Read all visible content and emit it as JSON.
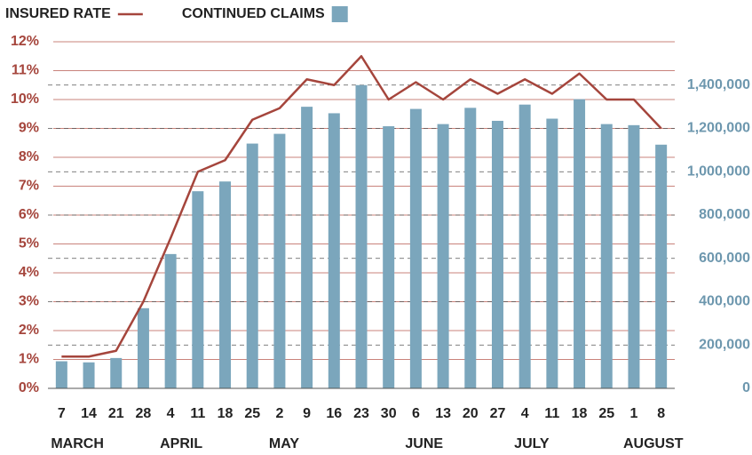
{
  "chart_data": {
    "type": "bar",
    "categories": [
      "7",
      "14",
      "21",
      "28",
      "4",
      "11",
      "18",
      "25",
      "2",
      "9",
      "16",
      "23",
      "30",
      "6",
      "13",
      "20",
      "27",
      "4",
      "11",
      "18",
      "25",
      "1",
      "8"
    ],
    "months": [
      "MARCH",
      null,
      null,
      null,
      "APRIL",
      null,
      null,
      null,
      "MAY",
      null,
      null,
      null,
      null,
      "JUNE",
      null,
      null,
      null,
      "JULY",
      null,
      null,
      null,
      "AUGUST",
      null
    ],
    "series": [
      {
        "name": "INSURED RATE",
        "type": "line",
        "color": "#a5453c",
        "values": [
          1.1,
          1.1,
          1.3,
          3.0,
          5.2,
          7.5,
          7.9,
          9.3,
          9.7,
          10.7,
          10.5,
          11.5,
          10.0,
          10.6,
          10.0,
          10.7,
          10.2,
          10.7,
          10.2,
          10.9,
          10.0,
          10.0,
          9.0
        ]
      },
      {
        "name": "CONTINUED CLAIMS",
        "type": "bar",
        "axis": "y2",
        "color": "#7ba6bc",
        "values": [
          125000,
          120000,
          140000,
          370000,
          620000,
          910000,
          955000,
          1130000,
          1175000,
          1300000,
          1270000,
          1400000,
          1210000,
          1290000,
          1220000,
          1295000,
          1235000,
          1310000,
          1245000,
          1335000,
          1220000,
          1215000,
          1125000
        ]
      }
    ],
    "ylim": [
      0,
      12
    ],
    "yticks": [
      {
        "value": 0,
        "label": "0%"
      },
      {
        "value": 1,
        "label": "1%"
      },
      {
        "value": 2,
        "label": "2%"
      },
      {
        "value": 3,
        "label": "3%"
      },
      {
        "value": 4,
        "label": "4%"
      },
      {
        "value": 5,
        "label": "5%"
      },
      {
        "value": 6,
        "label": "6%"
      },
      {
        "value": 7,
        "label": "7%"
      },
      {
        "value": 8,
        "label": "8%"
      },
      {
        "value": 9,
        "label": "9%"
      },
      {
        "value": 10,
        "label": "10%"
      },
      {
        "value": 11,
        "label": "11%"
      },
      {
        "value": 12,
        "label": "12%"
      }
    ],
    "y2lim": [
      0,
      1600000
    ],
    "y2ticks": [
      0,
      {
        "value": 200000,
        "label": "200,000"
      },
      {
        "value": 400000,
        "label": "400,000"
      },
      {
        "value": 600000,
        "label": "600,000"
      },
      {
        "value": 800000,
        "label": "800,000"
      },
      {
        "value": 1000000,
        "label": "1,000,000"
      },
      {
        "value": 1200000,
        "label": "1,200,000"
      },
      {
        "value": 1400000,
        "label": "1,400,000"
      }
    ],
    "grid": true
  }
}
